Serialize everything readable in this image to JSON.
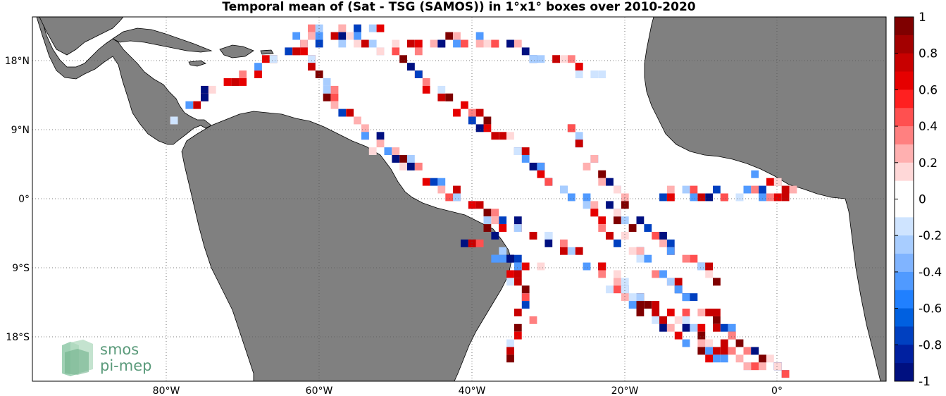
{
  "title": "Temporal mean of (Sat - TSG (SAMOS)) in 1°x1° boxes over 2010-2020",
  "map": {
    "lon_labels": [
      "80°W",
      "60°W",
      "40°W",
      "20°W",
      "0°"
    ],
    "lat_labels": [
      "18°N",
      "9°N",
      "0°",
      "9°S",
      "18°S"
    ],
    "land_color": "#808080",
    "ocean_color": "#ffffff"
  },
  "colorbar": {
    "ticks": [
      "1",
      "0.8",
      "0.6",
      "0.4",
      "0.2",
      "0",
      "-0.2",
      "-0.4",
      "-0.6",
      "-0.8",
      "-1"
    ],
    "colors": [
      "#7f0000",
      "#a30000",
      "#c80000",
      "#e60000",
      "#ff2020",
      "#ff5050",
      "#ff8080",
      "#ffb0b0",
      "#ffd8d8",
      "#ffffff",
      "#ffffff",
      "#cfe4ff",
      "#a8cdff",
      "#80b4ff",
      "#509aff",
      "#2080ff",
      "#0060e0",
      "#0040c0",
      "#0020a0",
      "#001080"
    ]
  },
  "logo": {
    "line1": "smos",
    "line2": "pi-mep"
  }
}
